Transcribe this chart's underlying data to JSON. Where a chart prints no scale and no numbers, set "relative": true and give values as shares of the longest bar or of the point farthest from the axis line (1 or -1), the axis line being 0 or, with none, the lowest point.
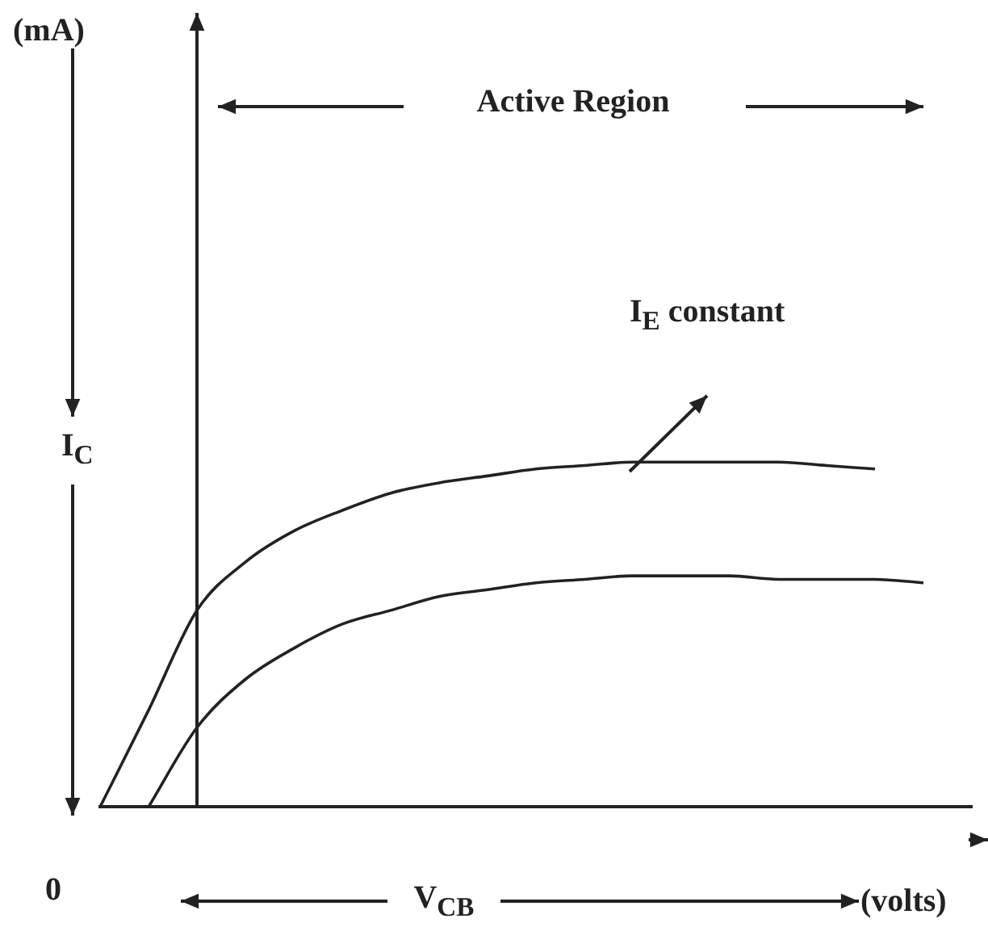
{
  "chart_data": {
    "type": "line",
    "relative": true,
    "xlabel": "V$_{CB}$",
    "ylabel": "I$_{C}$",
    "categories": [
      null,
      null,
      null,
      null,
      null,
      null,
      null,
      null,
      null,
      null,
      null,
      null,
      null,
      null,
      null,
      null,
      null,
      null,
      null
    ],
    "series": [
      {
        "color": "#222222",
        "values": [
          0,
          0.28,
          0.57,
          0.71,
          0.8,
          0.86,
          0.91,
          0.94,
          0.96,
          0.98,
          0.99,
          1,
          1,
          1,
          1,
          0.99,
          0.98,
          null,
          null
        ]
      },
      {
        "color": "#222222",
        "values": [
          null,
          0,
          0.23,
          0.37,
          0.46,
          0.53,
          0.57,
          0.61,
          0.63,
          0.65,
          0.66,
          0.67,
          0.67,
          0.67,
          0.66,
          0.66,
          0.66,
          0.65,
          null
        ]
      }
    ],
    "annotations": [
      "(mA)",
      "Active Region",
      "I$_{E}$ constant",
      "0",
      "(volts)"
    ],
    "legend": false,
    "grid": false
  }
}
